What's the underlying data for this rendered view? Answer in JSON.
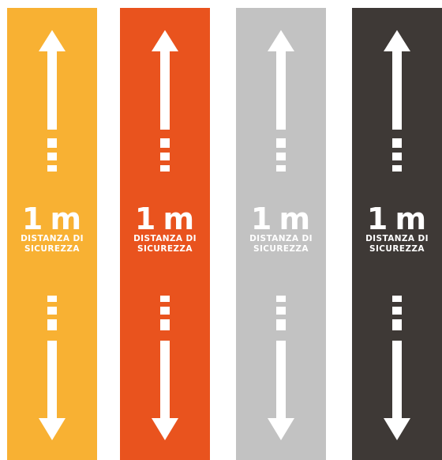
{
  "strips": [
    {
      "distance": "1 m",
      "caption_line1": "DISTANZA DI",
      "caption_line2": "SICUREZZA",
      "color": "#F8B133"
    },
    {
      "distance": "1 m",
      "caption_line1": "DISTANZA DI",
      "caption_line2": "SICUREZZA",
      "color": "#E9531E"
    },
    {
      "distance": "1 m",
      "caption_line1": "DISTANZA DI",
      "caption_line2": "SICUREZZA",
      "color": "#C2C2C2"
    },
    {
      "distance": "1 m",
      "caption_line1": "DISTANZA DI",
      "caption_line2": "SICUREZZA",
      "color": "#3E3936"
    }
  ]
}
